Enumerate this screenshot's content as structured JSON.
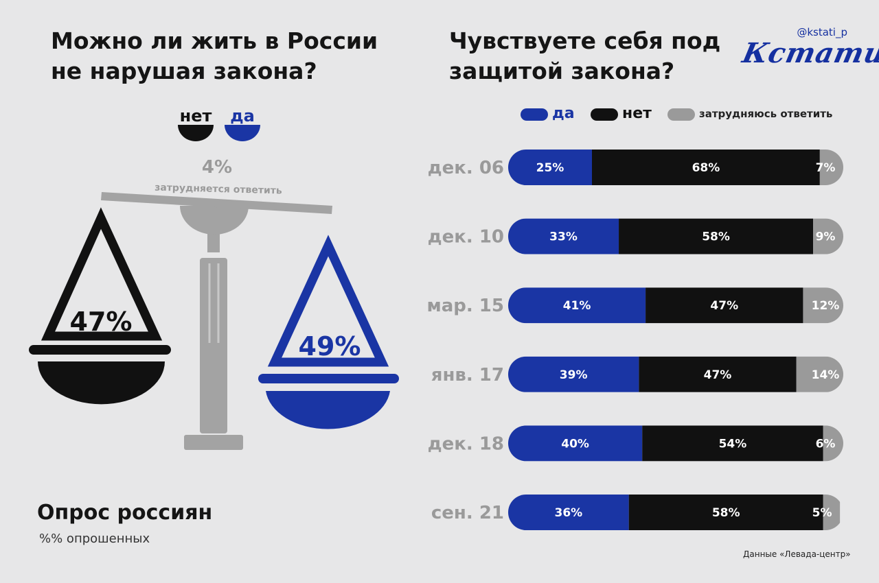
{
  "brand": {
    "handle": "@kstati_p",
    "name": "Кстати,"
  },
  "left_panel": {
    "title": "Можно ли жить в России\nне нарушая закона?",
    "legend": [
      {
        "label": "нет",
        "color": "#111111"
      },
      {
        "label": "да",
        "color": "#1a35a4"
      }
    ],
    "footer_title": "Опрос россиян",
    "footer_subtitle": "%% опрошенных"
  },
  "right_panel": {
    "title": "Чувствуете себя под\nзащитой закона?",
    "source": "Данные «Левада-центр»"
  },
  "chart_data": [
    {
      "type": "scale",
      "series": [
        {
          "name": "нет",
          "value": 47,
          "color": "#111111"
        },
        {
          "name": "да",
          "value": 49,
          "color": "#1a35a4"
        },
        {
          "name": "затрудняется ответить",
          "value": 4,
          "color": "#9a9a9a"
        }
      ],
      "value_labels": [
        "47%",
        "49%",
        "4%"
      ]
    },
    {
      "type": "bar",
      "orientation": "horizontal",
      "stacked": true,
      "categories": [
        "дек. 06",
        "дек. 10",
        "мар. 15",
        "янв. 17",
        "дек. 18",
        "сен. 21"
      ],
      "series": [
        {
          "name": "да",
          "color": "#1a35a4",
          "values": [
            25,
            33,
            41,
            39,
            40,
            36
          ]
        },
        {
          "name": "нет",
          "color": "#111111",
          "values": [
            68,
            58,
            47,
            47,
            54,
            58
          ]
        },
        {
          "name": "затрудняюсь ответить",
          "color": "#9a9a9a",
          "values": [
            7,
            9,
            12,
            14,
            6,
            5
          ]
        }
      ],
      "value_suffix": "%",
      "xlim": [
        0,
        100
      ]
    }
  ]
}
